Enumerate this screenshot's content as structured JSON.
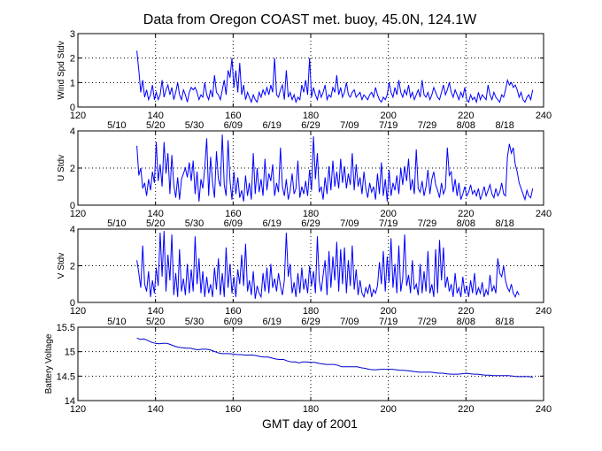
{
  "chart_data": [
    {
      "type": "line",
      "title": "Data from Oregon COAST met. buoy, 45.0N, 124.1W",
      "xlabel": "",
      "ylabel": "Wind Spd Stdv",
      "xlim": [
        120,
        240
      ],
      "ylim": [
        0,
        3
      ],
      "xticks": [
        "120",
        "140",
        "160",
        "180",
        "200",
        "220",
        "240"
      ],
      "yticks": [
        "0",
        "1",
        "2",
        "3"
      ],
      "date_ticks": [],
      "grid": true,
      "color": "#0000ff",
      "series": [
        {
          "name": "Wind Spd Stdv",
          "x_start": 135.2,
          "x_step": 0.5,
          "values": [
            2.3,
            1.5,
            0.6,
            1.1,
            0.4,
            0.7,
            0.3,
            0.5,
            0.9,
            0.3,
            0.6,
            0.3,
            0.5,
            1.1,
            0.4,
            0.7,
            0.9,
            0.5,
            0.8,
            0.3,
            0.6,
            1.0,
            0.5,
            0.3,
            0.7,
            0.5,
            0.2,
            0.6,
            0.8,
            0.7,
            0.8,
            0.6,
            0.3,
            0.5,
            0.4,
            1.0,
            0.5,
            0.3,
            0.7,
            0.4,
            1.3,
            0.6,
            0.5,
            0.3,
            0.7,
            1.1,
            0.5,
            1.5,
            1.2,
            2.0,
            0.8,
            1.5,
            0.6,
            1.8,
            0.5,
            0.9,
            0.3,
            0.6,
            0.4,
            0.2,
            0.5,
            0.3,
            0.2,
            0.6,
            0.4,
            0.7,
            0.5,
            0.8,
            0.5,
            0.9,
            0.6,
            2.0,
            0.5,
            0.4,
            0.7,
            0.9,
            0.3,
            1.5,
            0.4,
            0.6,
            0.3,
            0.5,
            0.2,
            0.4,
            0.3,
            0.9,
            0.6,
            1.1,
            0.5,
            2.0,
            0.4,
            0.8,
            0.5,
            0.3,
            0.7,
            0.4,
            0.6,
            0.9,
            0.3,
            0.5,
            0.4,
            0.8,
            0.6,
            1.3,
            0.5,
            0.8,
            0.4,
            0.6,
            1.0,
            0.5,
            0.4,
            0.6,
            0.7,
            0.4,
            0.5,
            0.6,
            0.3,
            0.5,
            0.4,
            0.3,
            0.5,
            0.6,
            0.4,
            0.8,
            0.5,
            0.3,
            0.2,
            0.4,
            0.3,
            0.5,
            1.0,
            0.6,
            0.4,
            0.8,
            0.5,
            1.1,
            0.6,
            0.4,
            0.7,
            0.5,
            0.9,
            0.4,
            0.6,
            0.3,
            0.5,
            0.7,
            0.4,
            1.1,
            0.5,
            0.4,
            0.6,
            0.3,
            0.5,
            0.8,
            0.6,
            0.4,
            0.3,
            0.6,
            0.9,
            0.5,
            0.7,
            1.0,
            0.6,
            0.4,
            0.7,
            0.5,
            0.3,
            0.6,
            0.4,
            0.8,
            0.3,
            0.2,
            0.5,
            0.3,
            0.4,
            0.2,
            0.6,
            0.3,
            0.5,
            0.4,
            0.3,
            0.9,
            0.5,
            0.3,
            0.6,
            0.4,
            0.3,
            0.2,
            0.5,
            0.4,
            0.7,
            1.1,
            0.9,
            1.0,
            0.8,
            0.9,
            0.7,
            0.4,
            0.6,
            0.3,
            0.2,
            0.4,
            0.5,
            0.3,
            0.7
          ]
        }
      ]
    },
    {
      "type": "line",
      "title": "",
      "xlabel": "",
      "ylabel": "U Stdv",
      "xlim": [
        120,
        240
      ],
      "ylim": [
        0,
        4
      ],
      "xticks": [
        "120",
        "140",
        "160",
        "180",
        "200",
        "220",
        "240"
      ],
      "yticks": [
        "0",
        "2",
        "4"
      ],
      "date_ticks": [
        "5/10",
        "5/20",
        "5/30",
        "6/09",
        "6/19",
        "6/29",
        "7/09",
        "7/19",
        "7/29",
        "8/08",
        "8/18"
      ],
      "grid": true,
      "color": "#0000ff",
      "series": [
        {
          "name": "U Stdv",
          "x_start": 135.2,
          "x_step": 0.5,
          "values": [
            3.2,
            1.6,
            2.0,
            0.9,
            1.2,
            0.5,
            1.4,
            0.8,
            1.8,
            1.2,
            3.4,
            1.3,
            2.2,
            1.0,
            3.4,
            1.7,
            2.8,
            0.6,
            2.7,
            1.1,
            0.4,
            1.5,
            0.3,
            1.4,
            1.7,
            2.0,
            1.5,
            2.3,
            1.3,
            2.4,
            0.6,
            1.8,
            0.2,
            1.4,
            0.9,
            2.0,
            3.6,
            0.5,
            2.6,
            1.2,
            0.4,
            2.9,
            1.4,
            1.0,
            3.8,
            1.1,
            0.5,
            3.5,
            1.3,
            0.3,
            1.8,
            0.6,
            1.5,
            0.4,
            0.8,
            0.2,
            1.6,
            0.5,
            1.2,
            0.3,
            2.8,
            0.6,
            2.0,
            0.7,
            1.4,
            0.5,
            2.5,
            0.8,
            1.7,
            1.3,
            2.2,
            0.5,
            1.2,
            0.7,
            3.1,
            1.0,
            0.5,
            1.4,
            0.3,
            0.8,
            1.7,
            0.6,
            0.9,
            2.4,
            0.4,
            1.0,
            0.6,
            1.3,
            0.5,
            1.9,
            0.8,
            3.7,
            1.4,
            2.8,
            0.7,
            1.0,
            0.3,
            1.5,
            0.6,
            2.1,
            0.8,
            2.4,
            1.0,
            1.8,
            0.9,
            2.5,
            1.2,
            2.1,
            0.9,
            1.7,
            1.1,
            2.8,
            0.8,
            2.2,
            1.0,
            1.5,
            0.6,
            1.8,
            0.9,
            0.4,
            1.2,
            0.7,
            1.0,
            0.3,
            1.7,
            0.6,
            2.3,
            0.5,
            1.4,
            0.2,
            1.9,
            0.5,
            1.2,
            0.8,
            1.6,
            0.6,
            2.0,
            1.1,
            2.1,
            1.3,
            2.5,
            0.8,
            1.4,
            0.6,
            3.0,
            0.9,
            0.7,
            1.3,
            0.5,
            1.0,
            1.9,
            0.6,
            1.4,
            1.8,
            1.1,
            0.8,
            0.4,
            1.2,
            0.6,
            0.9,
            3.1,
            1.6,
            1.8,
            0.7,
            1.4,
            0.5,
            1.2,
            0.3,
            0.6,
            1.0,
            0.5,
            0.7,
            1.1,
            0.6,
            0.8,
            0.5,
            0.9,
            0.3,
            0.6,
            1.0,
            0.5,
            0.8,
            1.1,
            0.6,
            0.4,
            0.9,
            0.5,
            0.7,
            1.2,
            0.6,
            0.5,
            2.6,
            3.3,
            2.8,
            3.1,
            2.2,
            1.8,
            1.2,
            0.9,
            0.6,
            0.3,
            0.8,
            0.5,
            0.4,
            0.9
          ]
        }
      ]
    },
    {
      "type": "line",
      "title": "",
      "xlabel": "",
      "ylabel": "V Stdv",
      "xlim": [
        120,
        240
      ],
      "ylim": [
        0,
        4
      ],
      "xticks": [
        "120",
        "140",
        "160",
        "180",
        "200",
        "220",
        "240"
      ],
      "yticks": [
        "0",
        "2",
        "4"
      ],
      "date_ticks": [
        "5/10",
        "5/20",
        "5/30",
        "6/09",
        "6/19",
        "6/29",
        "7/09",
        "7/19",
        "7/29",
        "8/08",
        "8/18"
      ],
      "grid": true,
      "color": "#0000ff",
      "series": [
        {
          "name": "V Stdv",
          "x_start": 135.2,
          "x_step": 0.5,
          "values": [
            2.3,
            1.6,
            0.8,
            3.1,
            1.0,
            0.6,
            1.7,
            0.3,
            1.2,
            0.5,
            1.9,
            0.9,
            3.8,
            1.4,
            3.9,
            0.6,
            2.6,
            1.2,
            3.7,
            0.4,
            1.6,
            0.3,
            2.9,
            0.6,
            1.3,
            0.4,
            2.1,
            0.5,
            1.8,
            0.6,
            3.6,
            1.0,
            2.4,
            0.5,
            1.7,
            0.3,
            1.4,
            0.5,
            1.0,
            0.3,
            1.9,
            0.7,
            2.4,
            0.4,
            1.6,
            0.3,
            3.0,
            0.8,
            2.1,
            0.5,
            1.4,
            0.3,
            1.8,
            1.0,
            2.6,
            0.9,
            3.2,
            0.6,
            1.2,
            0.4,
            1.7,
            0.2,
            0.9,
            0.5,
            0.3,
            1.6,
            0.6,
            1.9,
            0.5,
            2.1,
            0.8,
            1.3,
            0.6,
            1.6,
            0.9,
            0.4,
            1.2,
            3.8,
            1.4,
            2.1,
            0.5,
            1.1,
            0.3,
            1.6,
            0.5,
            1.9,
            0.7,
            1.3,
            0.5,
            2.0,
            0.9,
            1.7,
            0.5,
            3.6,
            1.2,
            0.6,
            1.5,
            2.3,
            0.4,
            2.8,
            0.8,
            2.5,
            1.2,
            3.3,
            0.6,
            2.9,
            1.0,
            3.0,
            0.5,
            2.3,
            0.9,
            3.1,
            0.7,
            1.8,
            0.4,
            1.2,
            0.5,
            0.3,
            0.8,
            0.5,
            1.0,
            0.3,
            0.7,
            0.5,
            0.9,
            2.2,
            1.0,
            2.8,
            0.6,
            2.5,
            1.1,
            3.5,
            0.8,
            2.1,
            0.5,
            3.1,
            0.6,
            1.3,
            3.7,
            0.9,
            1.5,
            0.5,
            2.3,
            0.7,
            1.0,
            0.4,
            2.1,
            0.5,
            1.7,
            0.6,
            2.8,
            0.5,
            1.0,
            0.3,
            2.9,
            0.5,
            3.4,
            1.2,
            3.0,
            0.8,
            1.4,
            0.6,
            1.0,
            0.3,
            1.6,
            0.5,
            0.8,
            0.3,
            1.4,
            0.5,
            0.9,
            0.3,
            1.2,
            0.5,
            1.6,
            0.4,
            0.8,
            0.5,
            1.1,
            0.3,
            0.7,
            0.4,
            1.5,
            0.6,
            0.9,
            0.5,
            2.4,
            1.6,
            1.4,
            2.0,
            1.2,
            0.8,
            0.6,
            1.0,
            0.5,
            0.3,
            0.6,
            0.4
          ]
        }
      ]
    },
    {
      "type": "line",
      "title": "",
      "xlabel": "GMT day of 2001",
      "ylabel": "Battery Voltage",
      "xlim": [
        120,
        240
      ],
      "ylim": [
        14,
        15.5
      ],
      "xticks": [
        "120",
        "140",
        "160",
        "180",
        "200",
        "220",
        "240"
      ],
      "yticks": [
        "14",
        "14.5",
        "15",
        "15.5"
      ],
      "date_ticks": [
        "5/10",
        "5/20",
        "5/30",
        "6/09",
        "6/19",
        "6/29",
        "7/09",
        "7/19",
        "7/29",
        "8/08",
        "8/18"
      ],
      "grid": true,
      "color": "#0000cc",
      "series": [
        {
          "name": "Battery Voltage",
          "x": [
            135.2,
            136,
            137,
            138,
            139,
            140,
            141,
            142,
            143,
            144,
            145,
            146,
            147,
            148,
            149,
            150,
            151,
            152,
            153,
            154,
            155,
            156,
            157,
            158,
            159,
            160,
            161,
            162,
            163,
            164,
            165,
            166,
            167,
            168,
            169,
            170,
            171,
            172,
            173,
            174,
            175,
            176,
            177,
            178,
            179,
            180,
            181,
            182,
            183,
            184,
            185,
            186,
            187,
            188,
            189,
            190,
            191,
            192,
            193,
            194,
            195,
            196,
            197,
            198,
            199,
            200,
            201,
            202,
            203,
            204,
            205,
            206,
            207,
            208,
            209,
            210,
            211,
            212,
            213,
            214,
            215,
            216,
            217,
            218,
            219,
            220,
            221,
            222,
            223,
            224,
            225,
            226,
            227,
            228,
            229,
            230,
            231,
            232,
            233,
            234,
            235,
            236,
            237.3
          ],
          "y": [
            15.28,
            15.25,
            15.26,
            15.23,
            15.19,
            15.17,
            15.16,
            15.17,
            15.17,
            15.14,
            15.11,
            15.09,
            15.08,
            15.07,
            15.07,
            15.05,
            15.04,
            15.05,
            15.05,
            15.04,
            15.01,
            14.98,
            14.96,
            14.96,
            14.96,
            14.95,
            14.94,
            14.94,
            14.93,
            14.93,
            14.93,
            14.92,
            14.9,
            14.89,
            14.89,
            14.87,
            14.85,
            14.84,
            14.84,
            14.81,
            14.79,
            14.79,
            14.77,
            14.79,
            14.79,
            14.78,
            14.78,
            14.76,
            14.75,
            14.74,
            14.74,
            14.74,
            14.72,
            14.69,
            14.69,
            14.69,
            14.69,
            14.69,
            14.67,
            14.66,
            14.64,
            14.63,
            14.63,
            14.64,
            14.64,
            14.64,
            14.64,
            14.63,
            14.62,
            14.62,
            14.61,
            14.6,
            14.59,
            14.58,
            14.58,
            14.58,
            14.58,
            14.57,
            14.56,
            14.56,
            14.55,
            14.54,
            14.54,
            14.54,
            14.55,
            14.56,
            14.55,
            14.54,
            14.54,
            14.53,
            14.52,
            14.52,
            14.51,
            14.51,
            14.51,
            14.51,
            14.51,
            14.5,
            14.49,
            14.49,
            14.49,
            14.49,
            14.48
          ]
        }
      ]
    }
  ]
}
